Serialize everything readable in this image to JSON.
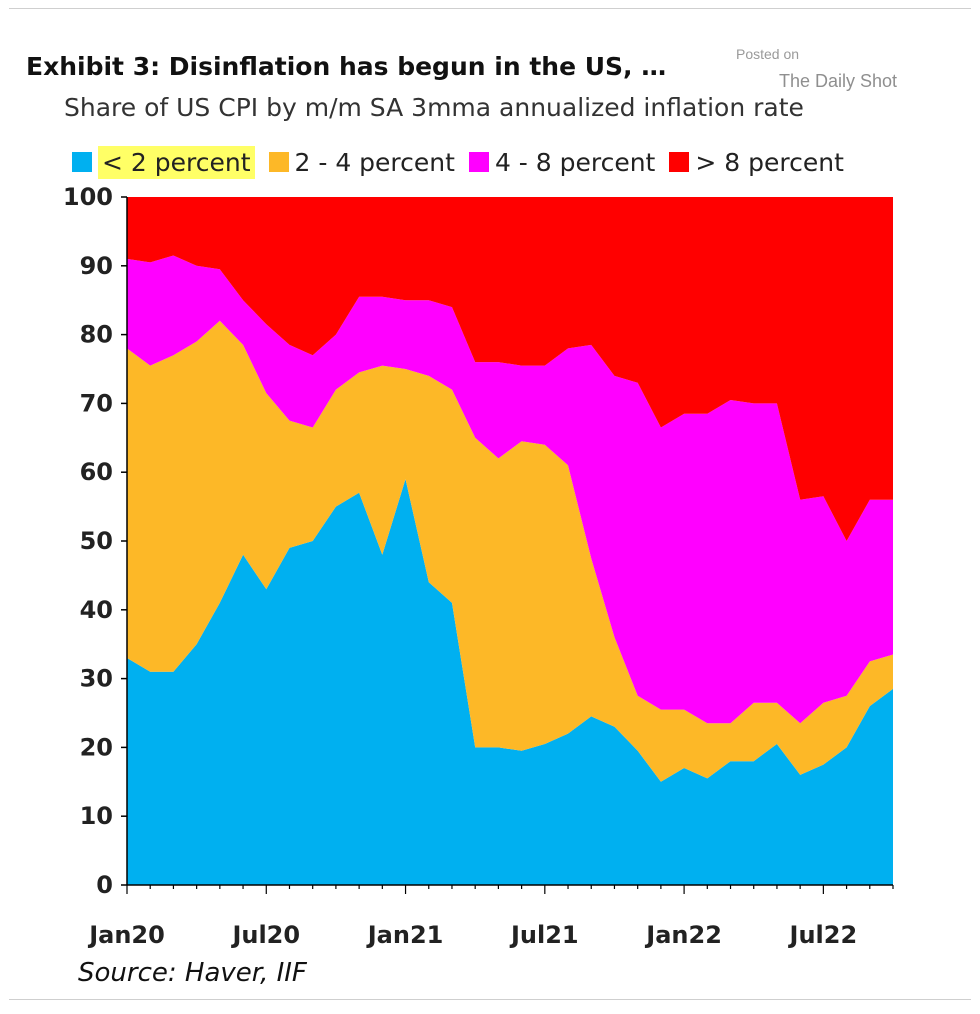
{
  "chart_data": {
    "type": "area",
    "stacked": true,
    "title": "Exhibit 3: Disinflation has begun in the US, …",
    "subtitle": "Share of US CPI by m/m SA 3mma annualized inflation rate",
    "source": "Source: Haver, IIF",
    "watermark": {
      "line1": "Posted on",
      "line2": "The Daily Shot"
    },
    "ylim": [
      0,
      100
    ],
    "yticks": [
      "100",
      "90",
      "80",
      "70",
      "60",
      "50",
      "40",
      "30",
      "20",
      "10",
      "0"
    ],
    "xticks": [
      "Jan20",
      "Jul20",
      "Jan21",
      "Jul21",
      "Jan22",
      "Jul22"
    ],
    "x": [
      "Jan20",
      "Feb20",
      "Mar20",
      "Apr20",
      "May20",
      "Jun20",
      "Jul20",
      "Aug20",
      "Sep20",
      "Oct20",
      "Nov20",
      "Dec20",
      "Jan21",
      "Feb21",
      "Mar21",
      "Apr21",
      "May21",
      "Jun21",
      "Jul21",
      "Aug21",
      "Sep21",
      "Oct21",
      "Nov21",
      "Dec21",
      "Jan22",
      "Feb22",
      "Mar22",
      "Apr22",
      "May22",
      "Jun22",
      "Jul22",
      "Aug22",
      "Sep22",
      "Oct22"
    ],
    "series": [
      {
        "name": "< 2 percent",
        "color": "#00b0f0",
        "highlight": "#ffff66",
        "values": [
          33,
          31,
          31,
          35,
          41,
          48,
          43,
          49,
          50,
          55,
          57,
          48,
          59,
          44,
          41,
          20,
          20,
          19.5,
          20.5,
          22,
          24.5,
          23,
          19.5,
          15,
          17,
          15.5,
          18,
          18,
          20.5,
          16,
          17.5,
          20,
          26,
          28.5
        ]
      },
      {
        "name": "2 - 4 percent",
        "color": "#fdb827",
        "values": [
          45,
          44.5,
          46,
          44,
          41,
          30.5,
          28.5,
          18.5,
          16.5,
          17,
          17.5,
          27.5,
          16,
          30,
          31,
          45,
          42,
          45,
          43.5,
          39,
          23,
          13,
          8,
          10.5,
          8.5,
          8,
          5.5,
          8.5,
          6,
          7.5,
          9,
          7.5,
          6.5,
          5
        ]
      },
      {
        "name": "4 - 8 percent",
        "color": "#ff00ff",
        "values": [
          13,
          15,
          14.5,
          11,
          7.5,
          6.5,
          10,
          11,
          10.5,
          8,
          11,
          10,
          10,
          11,
          12,
          11,
          14,
          11,
          11.5,
          17,
          31,
          38,
          45.5,
          41,
          43,
          45,
          47,
          43.5,
          43.5,
          32.5,
          30,
          22.5,
          23.5,
          22.5
        ]
      },
      {
        "name": "> 8 percent",
        "color": "#ff0000",
        "values": [
          9,
          9.5,
          8.5,
          10,
          10.5,
          15,
          18.5,
          21.5,
          23,
          20,
          14.5,
          14.5,
          15,
          15,
          16,
          24,
          24,
          24.5,
          24.5,
          22,
          21.5,
          26,
          27,
          33.5,
          31.5,
          31.5,
          29.5,
          30,
          30,
          44,
          43.5,
          50,
          44,
          44
        ]
      }
    ]
  }
}
